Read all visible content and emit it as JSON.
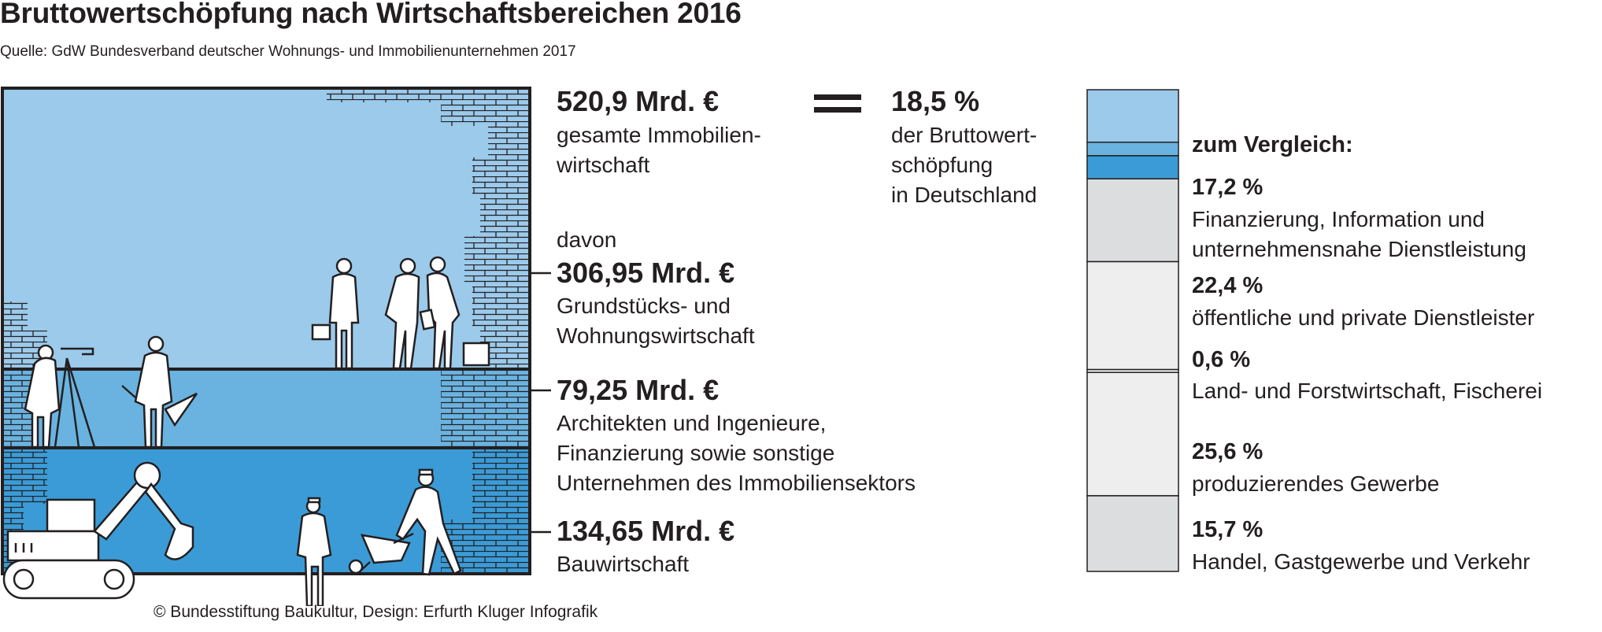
{
  "title": "Bruttowertschöpfung nach Wirtschaftsbereichen 2016",
  "source": "Quelle: GdW Bundesverband deutscher Wohnungs- und Immobilienunternehmen 2017",
  "credit": "© Bundesstiftung Baukultur, Design: Erfurth Kluger Infografik",
  "colors": {
    "light_blue": "#9bcaeb",
    "mid_blue": "#6ab3e0",
    "dark_blue": "#3b9bd6",
    "stroke": "#231f20",
    "gray": "#dcdddf",
    "light_gray": "#eeeeef"
  },
  "total": {
    "value": "520,9 Mrd. €",
    "label_line1": "gesamte Immobilien-",
    "label_line2": "wirtschaft",
    "equals_icon": "equals-sign-icon"
  },
  "share": {
    "value": "18,5 %",
    "label_line1": "der Bruttowert-",
    "label_line2": "schöpfung",
    "label_line3": "in Deutschland"
  },
  "davon": "davon",
  "segments": [
    {
      "value": "306,95 Mrd. €",
      "label_line1": "Grundstücks- und",
      "label_line2": "Wohnungswirtschaft",
      "label_line3": ""
    },
    {
      "value": "79,25 Mrd. €",
      "label_line1": "Architekten und Ingenieure,",
      "label_line2": "Finanzierung sowie sonstige",
      "label_line3": "Unternehmen des Immobiliensektors"
    },
    {
      "value": "134,65 Mrd. €",
      "label_line1": "Bauwirtschaft",
      "label_line2": "",
      "label_line3": ""
    }
  ],
  "comparison": {
    "heading": "zum Vergleich:",
    "items": [
      {
        "value": "17,2 %",
        "label_line1": "Finanzierung, Information und",
        "label_line2": "unternehmensnahe Dienstleistung"
      },
      {
        "value": "22,4 %",
        "label_line1": "öffentliche und private Dienstleister",
        "label_line2": ""
      },
      {
        "value": "0,6 %",
        "label_line1": "Land- und Forstwirtschaft, Fischerei",
        "label_line2": ""
      },
      {
        "value": "25,6 %",
        "label_line1": "produzierendes Gewerbe",
        "label_line2": ""
      },
      {
        "value": "15,7 %",
        "label_line1": "Handel, Gastgewerbe und Verkehr",
        "label_line2": ""
      }
    ]
  },
  "chart_data": {
    "type": "bar",
    "title": "Bruttowertschöpfung nach Wirtschaftsbereichen 2016",
    "subtitle": "Quelle: GdW Bundesverband deutscher Wohnungs- und Immobilienunternehmen 2017",
    "unit_left": "Mrd. €",
    "unit_right": "%",
    "real_estate_breakdown": {
      "total": 520.9,
      "categories": [
        "Grundstücks- und Wohnungswirtschaft",
        "Architekten und Ingenieure, Finanzierung sowie sonstige Unternehmen des Immobiliensektors",
        "Bauwirtschaft"
      ],
      "values": [
        306.95,
        79.25,
        134.65
      ]
    },
    "stacked_share": {
      "categories": [
        "Grundstücks- und Wohnungswirtschaft",
        "Architekten und Ingenieure, Finanzierung sowie sonstige Unternehmen des Immobiliensektors",
        "Bauwirtschaft",
        "Finanzierung, Information und unternehmensnahe Dienstleistung",
        "öffentliche und private Dienstleister",
        "Land- und Forstwirtschaft, Fischerei",
        "produzierendes Gewerbe",
        "Handel, Gastgewerbe und Verkehr"
      ],
      "values": [
        10.9,
        2.8,
        4.8,
        17.2,
        22.4,
        0.6,
        25.6,
        15.7
      ],
      "total_real_estate_share": 18.5
    }
  }
}
